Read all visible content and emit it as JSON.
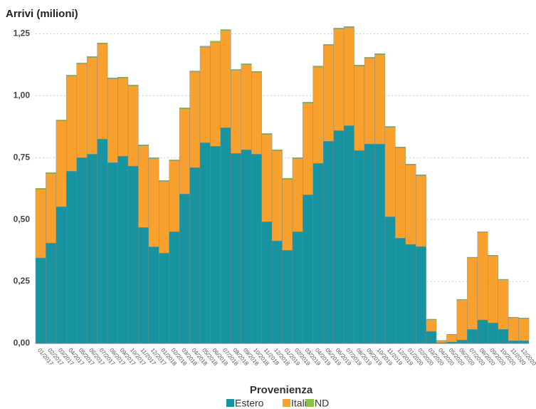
{
  "chart_data": {
    "type": "stacked_bar",
    "title": "Arrivi (milioni)",
    "legend_title": "Provenienza",
    "categories": [
      "01/2017",
      "02/2017",
      "03/2017",
      "04/2017",
      "05/2017",
      "06/2017",
      "07/2017",
      "08/2017",
      "09/2017",
      "10/2017",
      "11/2017",
      "12/2017",
      "01/2018",
      "02/2018",
      "03/2018",
      "04/2018",
      "05/2018",
      "06/2018",
      "07/2018",
      "08/2018",
      "09/2018",
      "10/2018",
      "11/2018",
      "12/2018",
      "01/2019",
      "02/2019",
      "03/2019",
      "04/2019",
      "05/2019",
      "06/2019",
      "07/2019",
      "08/2019",
      "09/2019",
      "10/2019",
      "11/2019",
      "12/2019",
      "01/2020",
      "02/2020",
      "03/2020",
      "04/2020",
      "05/2020",
      "06/2020",
      "07/2020",
      "08/2020",
      "09/2020",
      "10/2020",
      "11/2020",
      "12/2020"
    ],
    "series": [
      {
        "name": "Estero",
        "color": "#17949f",
        "values": [
          0.345,
          0.405,
          0.552,
          0.695,
          0.75,
          0.764,
          0.825,
          0.73,
          0.756,
          0.716,
          0.468,
          0.39,
          0.365,
          0.451,
          0.603,
          0.71,
          0.81,
          0.796,
          0.871,
          0.767,
          0.782,
          0.764,
          0.491,
          0.414,
          0.376,
          0.451,
          0.6,
          0.727,
          0.816,
          0.859,
          0.879,
          0.779,
          0.805,
          0.805,
          0.511,
          0.425,
          0.4,
          0.391,
          0.049,
          0.003,
          0.006,
          0.014,
          0.057,
          0.095,
          0.083,
          0.057,
          0.011,
          0.011
        ]
      },
      {
        "name": "Italia",
        "color": "#f9a12e",
        "values": [
          0.277,
          0.281,
          0.346,
          0.384,
          0.378,
          0.39,
          0.384,
          0.338,
          0.315,
          0.323,
          0.33,
          0.356,
          0.289,
          0.286,
          0.344,
          0.386,
          0.386,
          0.42,
          0.392,
          0.335,
          0.343,
          0.33,
          0.353,
          0.364,
          0.287,
          0.295,
          0.37,
          0.389,
          0.387,
          0.41,
          0.396,
          0.341,
          0.346,
          0.361,
          0.361,
          0.364,
          0.32,
          0.286,
          0.047,
          0.008,
          0.03,
          0.162,
          0.289,
          0.354,
          0.271,
          0.2,
          0.093,
          0.09
        ]
      },
      {
        "name": "ND",
        "color": "#8bc34a",
        "values": [
          0.004,
          0.004,
          0.004,
          0.004,
          0.004,
          0.004,
          0.004,
          0.004,
          0.004,
          0.004,
          0.004,
          0.004,
          0.004,
          0.004,
          0.004,
          0.004,
          0.004,
          0.004,
          0.004,
          0.004,
          0.004,
          0.004,
          0.004,
          0.004,
          0.004,
          0.004,
          0.004,
          0.004,
          0.004,
          0.004,
          0.004,
          0.004,
          0.004,
          0.004,
          0.004,
          0.004,
          0.004,
          0.004,
          0.002,
          0.001,
          0.001,
          0.002,
          0.002,
          0.002,
          0.002,
          0.002,
          0.002,
          0.002
        ]
      }
    ],
    "ylim": [
      0,
      1.3
    ],
    "yticks": [
      {
        "value": 0,
        "label": "0,00"
      },
      {
        "value": 0.25,
        "label": "0,25"
      },
      {
        "value": 0.5,
        "label": "0,50"
      },
      {
        "value": 0.75,
        "label": "0,75"
      },
      {
        "value": 1,
        "label": "1,00"
      },
      {
        "value": 1.25,
        "label": "1,25"
      }
    ],
    "grid": true
  }
}
